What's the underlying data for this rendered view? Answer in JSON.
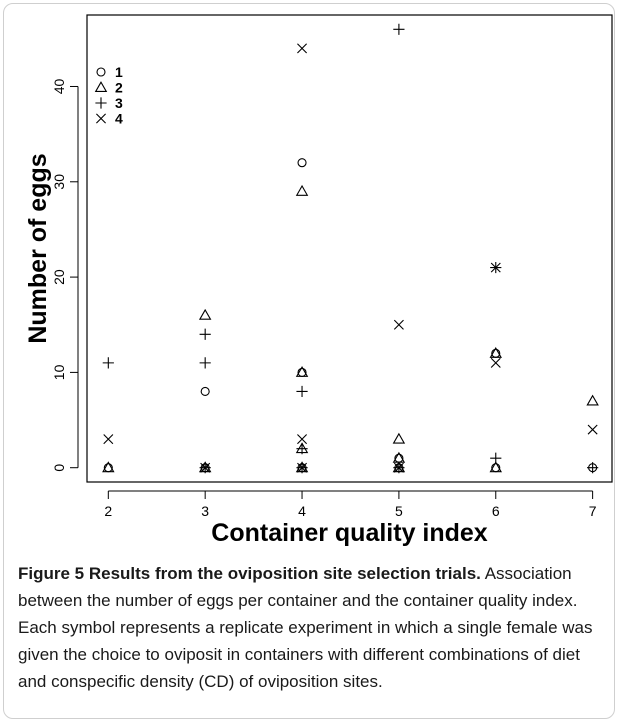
{
  "chart_data": {
    "type": "scatter",
    "xlabel": "Container quality index",
    "ylabel": "Number of eggs",
    "xlim": [
      1.78,
      7.2
    ],
    "ylim": [
      -1.5,
      47.5
    ],
    "xticks": [
      2,
      3,
      4,
      5,
      6,
      7
    ],
    "yticks": [
      0,
      10,
      20,
      30,
      40
    ],
    "grid": false,
    "legend": "top-left",
    "series": [
      {
        "name": "1",
        "marker": "circle",
        "points": [
          [
            2,
            0
          ],
          [
            3,
            8
          ],
          [
            3,
            0
          ],
          [
            4,
            32
          ],
          [
            4,
            10
          ],
          [
            4,
            0
          ],
          [
            5,
            1
          ],
          [
            5,
            0
          ],
          [
            6,
            12
          ],
          [
            6,
            0
          ],
          [
            7,
            0
          ]
        ]
      },
      {
        "name": "2",
        "marker": "triangle",
        "points": [
          [
            2,
            0
          ],
          [
            3,
            16
          ],
          [
            3,
            0
          ],
          [
            4,
            29
          ],
          [
            4,
            10
          ],
          [
            4,
            2
          ],
          [
            4,
            0
          ],
          [
            5,
            3
          ],
          [
            5,
            1
          ],
          [
            5,
            0
          ],
          [
            6,
            12
          ],
          [
            6,
            0
          ],
          [
            7,
            7
          ]
        ]
      },
      {
        "name": "3",
        "marker": "plus",
        "points": [
          [
            2,
            11
          ],
          [
            3,
            14
          ],
          [
            3,
            11
          ],
          [
            3,
            0
          ],
          [
            4,
            8
          ],
          [
            4,
            2
          ],
          [
            4,
            0
          ],
          [
            5,
            46
          ],
          [
            5,
            0
          ],
          [
            6,
            21
          ],
          [
            6,
            1
          ],
          [
            7,
            0
          ]
        ]
      },
      {
        "name": "4",
        "marker": "cross",
        "points": [
          [
            2,
            3
          ],
          [
            3,
            0
          ],
          [
            4,
            44
          ],
          [
            4,
            3
          ],
          [
            4,
            0
          ],
          [
            5,
            15
          ],
          [
            5,
            0
          ],
          [
            6,
            21
          ],
          [
            6,
            11
          ],
          [
            7,
            4
          ]
        ]
      }
    ]
  },
  "caption": {
    "title": "Figure 5 Results from the oviposition site selection trials.",
    "body": "Association between the number of eggs per container and the container quality index. Each symbol represents a replicate experiment in which a single female was given the choice to oviposit in containers with different combinations of diet and conspecific density (CD) of oviposition sites."
  }
}
